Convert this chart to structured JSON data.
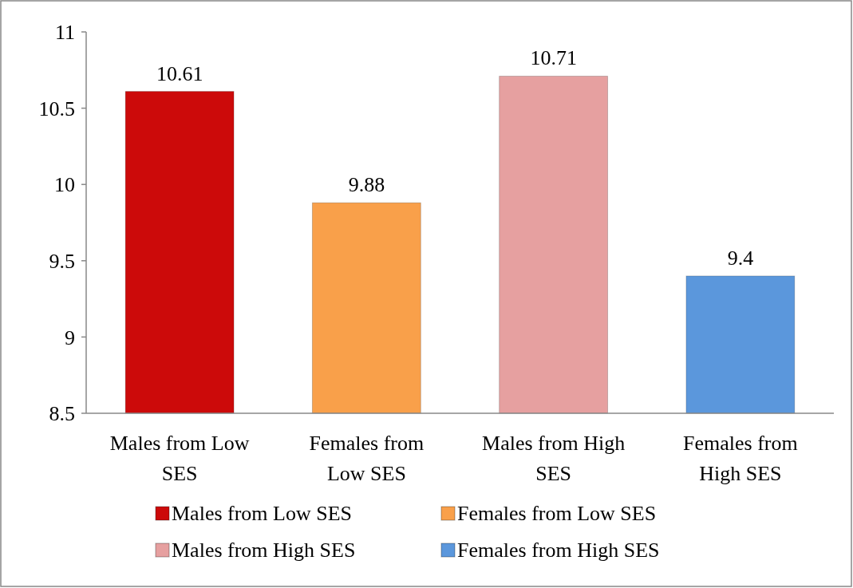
{
  "chart_data": {
    "type": "bar",
    "categories": [
      "Males from Low SES",
      "Females from Low SES",
      "Males from High SES",
      "Females from High SES"
    ],
    "series": [
      {
        "name": "Males from Low SES",
        "color": "#cc0a0a",
        "values": [
          10.61,
          null,
          null,
          null
        ]
      },
      {
        "name": "Females from Low SES",
        "color": "#f9a04a",
        "values": [
          null,
          9.88,
          null,
          null
        ]
      },
      {
        "name": "Males from High SES",
        "color": "#e6a0a0",
        "values": [
          null,
          null,
          10.71,
          null
        ]
      },
      {
        "name": "Females from High SES",
        "color": "#5b97dc",
        "values": [
          null,
          null,
          null,
          9.4
        ]
      }
    ],
    "stacked": true,
    "ylim": [
      8.5,
      11
    ],
    "yticks": [
      8.5,
      9,
      9.5,
      10,
      10.5,
      11
    ],
    "data_labels": true,
    "legend": "bottom"
  }
}
